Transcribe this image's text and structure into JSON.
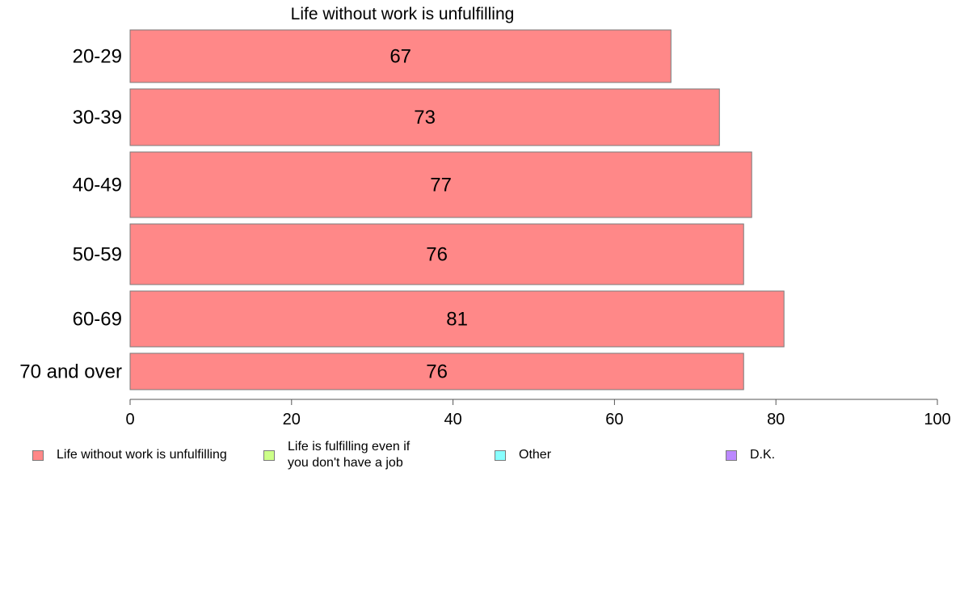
{
  "chart_data": {
    "type": "bar",
    "orientation": "horizontal",
    "title": "Life without work is unfulfilling",
    "categories": [
      "20-29",
      "30-39",
      "40-49",
      "50-59",
      "60-69",
      "70 and over"
    ],
    "series": [
      {
        "name": "Life without work is unfulfilling",
        "values": [
          67,
          73,
          77,
          76,
          81,
          76
        ]
      }
    ],
    "data_labels": [
      "67",
      "73",
      "77",
      "76",
      "81",
      "76"
    ],
    "xlim": [
      0,
      100
    ],
    "x_ticks": [
      0,
      20,
      40,
      60,
      80,
      100
    ],
    "x_tick_labels": [
      "0",
      "20",
      "40",
      "60",
      "80",
      "100"
    ],
    "grid": false,
    "legend_position": "bottom"
  },
  "legend": {
    "items": [
      {
        "label": "Life without work is unfulfilling",
        "color": "#ff8888"
      },
      {
        "label": "Life is fulfilling even if\nyou don't have a job",
        "color": "#ccff88"
      },
      {
        "label": "Other",
        "color": "#88ffff"
      },
      {
        "label": "D.K.",
        "color": "#bb88ff"
      }
    ]
  },
  "colors": {
    "bar": "#ff8888",
    "bar_stroke": "#7a7a7a",
    "axis": "#555555"
  }
}
